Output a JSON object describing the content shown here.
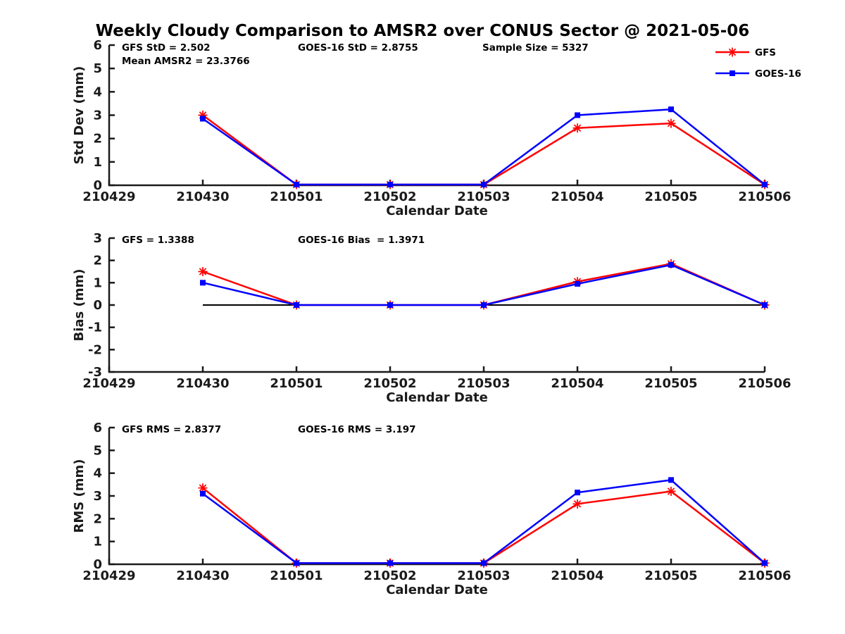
{
  "title": "Weekly Cloudy Comparison to AMSR2 over CONUS Sector @ 2021-05-06",
  "legend": {
    "items": [
      {
        "label": "GFS",
        "color": "#ff0000",
        "marker": "asterisk"
      },
      {
        "label": "GOES-16",
        "color": "#0000ff",
        "marker": "square"
      }
    ]
  },
  "colors": {
    "gfs": "#ff0000",
    "goes16": "#0000ff",
    "axis": "#1a1a1a",
    "zero_line": "#000000"
  },
  "chart_data": [
    {
      "type": "line",
      "name": "std-dev",
      "ylabel": "Std Dev (mm)",
      "xlabel": "Calendar Date",
      "ylim": [
        0,
        6
      ],
      "ytick_step": 1,
      "x_ticks": [
        "210429",
        "210430",
        "210501",
        "210502",
        "210503",
        "210504",
        "210505",
        "210506"
      ],
      "categories": [
        "210430",
        "210501",
        "210502",
        "210503",
        "210504",
        "210505",
        "210506"
      ],
      "series": [
        {
          "name": "GFS",
          "color": "#ff0000",
          "marker": "asterisk",
          "values": [
            3.0,
            0.03,
            0.03,
            0.03,
            2.45,
            2.65,
            0.03
          ]
        },
        {
          "name": "GOES-16",
          "color": "#0000ff",
          "marker": "square",
          "values": [
            2.85,
            0.03,
            0.03,
            0.03,
            3.0,
            3.25,
            0.03
          ]
        }
      ],
      "annotations": [
        {
          "text": "GFS StD = 2.502",
          "col": 0,
          "line": 0
        },
        {
          "text": "Mean AMSR2 = 23.3766",
          "col": 0,
          "line": 1
        },
        {
          "text": "GOES-16 StD = 2.8755",
          "col": 1,
          "line": 0
        },
        {
          "text": "Sample Size = 5327",
          "col": 2,
          "line": 0
        }
      ],
      "zero_line": false,
      "show_legend": true,
      "grid": false
    },
    {
      "type": "line",
      "name": "bias",
      "ylabel": "Bias (mm)",
      "xlabel": "Calendar Date",
      "ylim": [
        -3,
        3
      ],
      "ytick_step": 1,
      "x_ticks": [
        "210429",
        "210430",
        "210501",
        "210502",
        "210503",
        "210504",
        "210505",
        "210506"
      ],
      "categories": [
        "210430",
        "210501",
        "210502",
        "210503",
        "210504",
        "210505",
        "210506"
      ],
      "series": [
        {
          "name": "GFS",
          "color": "#ff0000",
          "marker": "asterisk",
          "values": [
            1.5,
            0.0,
            0.0,
            0.0,
            1.05,
            1.85,
            0.0
          ]
        },
        {
          "name": "GOES-16",
          "color": "#0000ff",
          "marker": "square",
          "values": [
            1.0,
            0.0,
            0.0,
            0.0,
            0.95,
            1.8,
            0.0
          ]
        }
      ],
      "annotations": [
        {
          "text": "GFS = 1.3388",
          "col": 0,
          "line": 0
        },
        {
          "text": "GOES-16 Bias  = 1.3971",
          "col": 1,
          "line": 0
        }
      ],
      "zero_line": true,
      "show_legend": false,
      "grid": false
    },
    {
      "type": "line",
      "name": "rms",
      "ylabel": "RMS (mm)",
      "xlabel": "Calendar Date",
      "ylim": [
        0,
        6
      ],
      "ytick_step": 1,
      "x_ticks": [
        "210429",
        "210430",
        "210501",
        "210502",
        "210503",
        "210504",
        "210505",
        "210506"
      ],
      "categories": [
        "210430",
        "210501",
        "210502",
        "210503",
        "210504",
        "210505",
        "210506"
      ],
      "series": [
        {
          "name": "GFS",
          "color": "#ff0000",
          "marker": "asterisk",
          "values": [
            3.35,
            0.05,
            0.05,
            0.05,
            2.65,
            3.2,
            0.05
          ]
        },
        {
          "name": "GOES-16",
          "color": "#0000ff",
          "marker": "square",
          "values": [
            3.1,
            0.05,
            0.05,
            0.05,
            3.15,
            3.7,
            0.05
          ]
        }
      ],
      "annotations": [
        {
          "text": "GFS RMS = 2.8377",
          "col": 0,
          "line": 0
        },
        {
          "text": "GOES-16 RMS = 3.197",
          "col": 1,
          "line": 0
        }
      ],
      "zero_line": false,
      "show_legend": false,
      "grid": false
    }
  ]
}
